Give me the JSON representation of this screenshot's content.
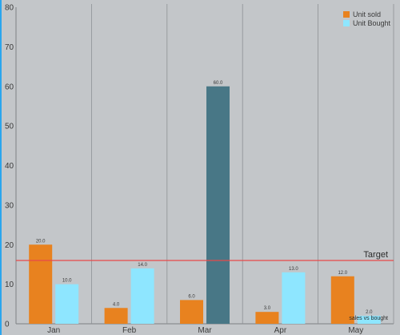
{
  "chart_data": {
    "type": "bar",
    "categories": [
      "Jan",
      "Feb",
      "Mar",
      "Apr",
      "May"
    ],
    "series": [
      {
        "name": "Unit sold",
        "values": [
          20.0,
          4.0,
          6.0,
          3.0,
          12.0
        ],
        "value_labels": [
          "20.0",
          "4.0",
          "6.0",
          "3.0",
          "12.0"
        ],
        "color": "#e8821f"
      },
      {
        "name": "Unit Bought",
        "values": [
          10.0,
          14.0,
          60.0,
          13.0,
          2.0
        ],
        "value_labels": [
          "10.0",
          "14.0",
          "60.0",
          "13.0",
          "2.0"
        ],
        "color": "#8ee6ff",
        "highlight": {
          "index": 2,
          "color": "#487786"
        }
      }
    ],
    "ylim": [
      0,
      80
    ],
    "yticks": [
      0,
      10,
      20,
      30,
      40,
      50,
      60,
      70,
      80
    ],
    "ytick_labels": [
      "0",
      "10",
      "20",
      "30",
      "40",
      "50",
      "60",
      "70",
      "80"
    ],
    "limit_line": {
      "value": 16,
      "label": "Target",
      "color": "#e84a4a"
    },
    "description": "sales vs bought",
    "legend_position": "top-right",
    "grid": {
      "vertical": true,
      "horizontal": false
    },
    "background": "#c3c6c9"
  }
}
